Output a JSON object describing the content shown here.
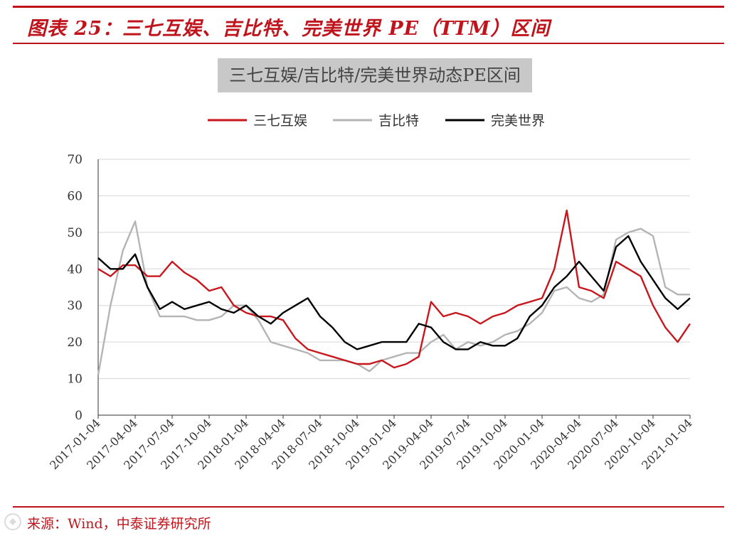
{
  "figure": {
    "title": "图表 25：三七互娱、吉比特、完美世界 PE（TTM）区间",
    "source": "来源：Wind，中泰证券研究所"
  },
  "colors": {
    "accent": "#c0141c",
    "series_red": "#c8161d",
    "series_gray": "#b4b4b4",
    "series_black": "#000000"
  },
  "chart_data": {
    "type": "line",
    "title": "三七互娱/吉比特/完美世界动态PE区间",
    "xlabel": "",
    "ylabel": "",
    "ylim": [
      0,
      70
    ],
    "yticks": [
      0,
      10,
      20,
      30,
      40,
      50,
      60,
      70
    ],
    "grid": true,
    "legend_position": "top-center",
    "x": [
      "2017-01-04",
      "2017-02-04",
      "2017-03-04",
      "2017-04-04",
      "2017-05-04",
      "2017-06-04",
      "2017-07-04",
      "2017-08-04",
      "2017-09-04",
      "2017-10-04",
      "2017-11-04",
      "2017-12-04",
      "2018-01-04",
      "2018-02-04",
      "2018-03-04",
      "2018-04-04",
      "2018-05-04",
      "2018-06-04",
      "2018-07-04",
      "2018-08-04",
      "2018-09-04",
      "2018-10-04",
      "2018-11-04",
      "2018-12-04",
      "2019-01-04",
      "2019-02-04",
      "2019-03-04",
      "2019-04-04",
      "2019-05-04",
      "2019-06-04",
      "2019-07-04",
      "2019-08-04",
      "2019-09-04",
      "2019-10-04",
      "2019-11-04",
      "2019-12-04",
      "2020-01-04",
      "2020-02-04",
      "2020-03-04",
      "2020-04-04",
      "2020-05-04",
      "2020-06-04",
      "2020-07-04",
      "2020-08-04",
      "2020-09-04",
      "2020-10-04",
      "2020-11-04",
      "2020-12-04",
      "2021-01-04"
    ],
    "xtick_labels": [
      "2017-01-04",
      "2017-04-04",
      "2017-07-04",
      "2017-10-04",
      "2018-01-04",
      "2018-04-04",
      "2018-07-04",
      "2018-10-04",
      "2019-01-04",
      "2019-04-04",
      "2019-07-04",
      "2019-10-04",
      "2020-01-04",
      "2020-04-04",
      "2020-07-04",
      "2020-10-04",
      "2021-01-04"
    ],
    "series": [
      {
        "name": "三七互娱",
        "color": "#c8161d",
        "values": [
          40,
          38,
          41,
          41,
          38,
          38,
          42,
          39,
          37,
          34,
          35,
          30,
          28,
          27,
          27,
          26,
          21,
          18,
          17,
          16,
          15,
          14,
          14,
          15,
          13,
          14,
          16,
          31,
          27,
          28,
          27,
          25,
          27,
          28,
          30,
          31,
          32,
          40,
          56,
          35,
          34,
          32,
          42,
          40,
          38,
          30,
          24,
          20,
          25
        ]
      },
      {
        "name": "吉比特",
        "color": "#b4b4b4",
        "values": [
          11,
          30,
          45,
          53,
          35,
          27,
          27,
          27,
          26,
          26,
          27,
          30,
          30,
          26,
          20,
          19,
          18,
          17,
          15,
          15,
          15,
          14,
          12,
          15,
          16,
          17,
          17,
          20,
          22,
          18,
          20,
          19,
          20,
          22,
          23,
          25,
          28,
          34,
          35,
          32,
          31,
          33,
          48,
          50,
          51,
          49,
          35,
          33,
          33
        ]
      },
      {
        "name": "完美世界",
        "color": "#000000",
        "values": [
          43,
          40,
          40,
          44,
          35,
          29,
          31,
          29,
          30,
          31,
          29,
          28,
          30,
          27,
          25,
          28,
          30,
          32,
          27,
          24,
          20,
          18,
          19,
          20,
          20,
          20,
          25,
          24,
          20,
          18,
          18,
          20,
          19,
          19,
          21,
          27,
          30,
          35,
          38,
          42,
          38,
          34,
          46,
          49,
          42,
          37,
          32,
          29,
          32
        ]
      }
    ]
  }
}
